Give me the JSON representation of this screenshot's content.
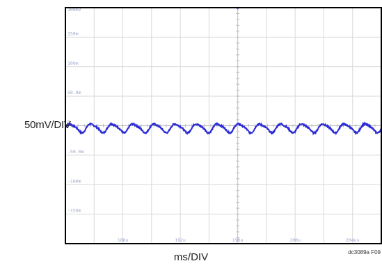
{
  "chart_data": {
    "type": "line",
    "title": "",
    "ylabel": "50mV/DIV",
    "xlabel": "ms/DIV",
    "figure_id": "dc3089a F09",
    "y_tick_labels": [
      "200mV",
      "150m",
      "100m",
      "50.0m",
      "0",
      "-50.0m",
      "-100m",
      "-150m"
    ],
    "y_tick_values": [
      200,
      150,
      100,
      50,
      0,
      -50,
      -100,
      -150
    ],
    "ylim": [
      -200,
      200
    ],
    "y_unit": "mV",
    "x_tick_labels": [
      "188u",
      "192u",
      "196u",
      "200u",
      "204us"
    ],
    "x_tick_values": [
      188,
      192,
      196,
      200,
      204
    ],
    "xlim": [
      184.0,
      206.0
    ],
    "x_unit": "us",
    "grid": true,
    "trigger_marker_x": 196.0,
    "series": [
      {
        "color": "#2a2ad6",
        "ripple_mean_mV": -4,
        "ripple_amplitude_mV": 7,
        "ripple_period_us": 1.47,
        "noise_mV": 1.2
      }
    ]
  },
  "colors": {
    "trace": "#2a2ad6",
    "grid": "#d9d9d9",
    "frame": "#000000",
    "tick_label": "#9aa6c8",
    "marker": "#5b78c8"
  }
}
